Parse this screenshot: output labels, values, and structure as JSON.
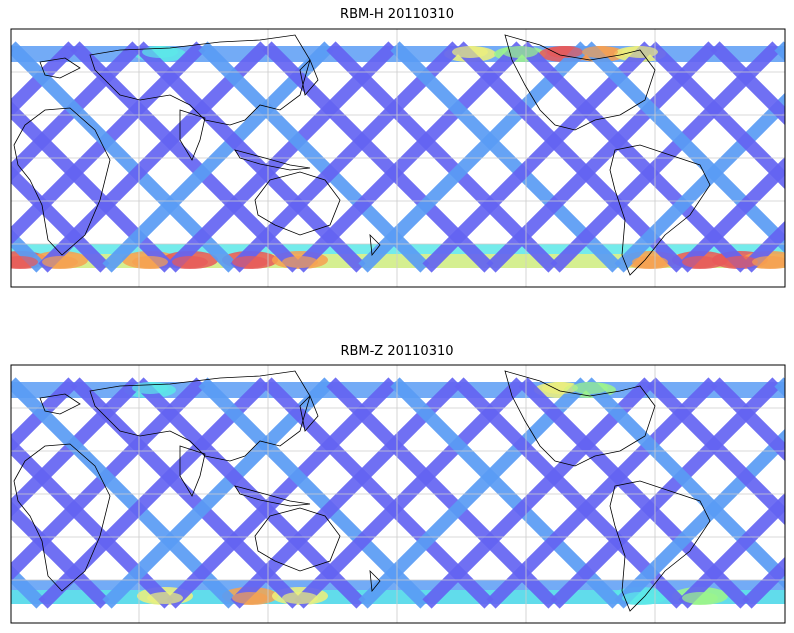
{
  "figure": {
    "panels": [
      {
        "id": "top",
        "title": "RBM-H 20110310",
        "coast_dir": 1,
        "dark_ratio": 0.55,
        "hot_band_south": "strong",
        "hot_band_north": "moderate"
      },
      {
        "id": "bottom",
        "title": "RBM-Z 20110310",
        "coast_dir": 1,
        "dark_ratio": 0.8,
        "hot_band_south": "weak",
        "hot_band_north": "weak"
      }
    ],
    "colors": {
      "track_low": "#6464f2",
      "track_mid": "#5a9cf5",
      "track_cyan": "#5ce8e8",
      "track_green": "#9df58a",
      "track_yellow": "#eef07a",
      "track_orange": "#f7a050",
      "track_red": "#e85858",
      "coastline": "#000000",
      "gridline": "#cccccc",
      "frame": "#000000"
    },
    "colormap": "jet",
    "projection": "cylindrical-pacific-centered",
    "gridlines": true
  }
}
